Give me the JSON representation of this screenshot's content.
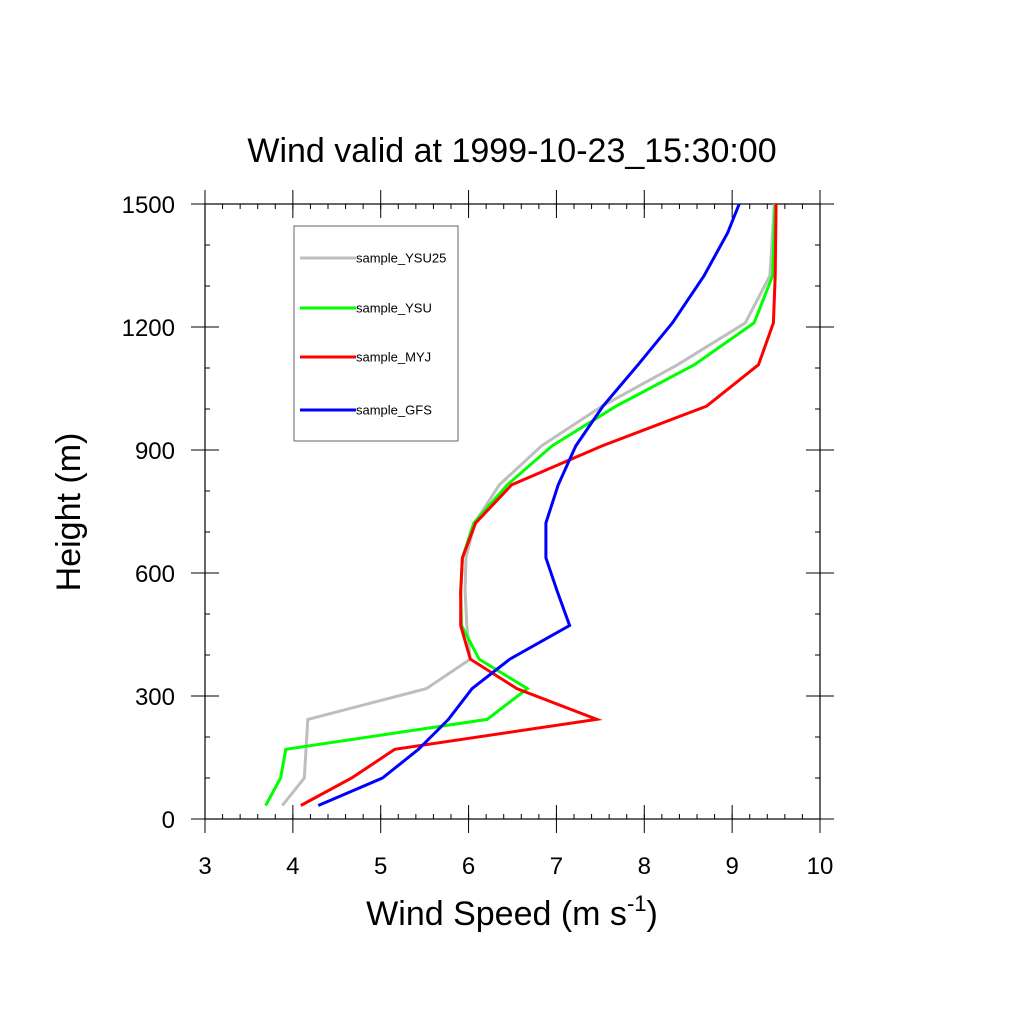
{
  "chart_data": {
    "type": "line",
    "title": "Wind valid at 1999-10-23_15:30:00",
    "xlabel": "Wind Speed (m s",
    "xlabel_superscript": "-1",
    "xlabel_suffix": ")",
    "ylabel": "Height (m)",
    "xlim": [
      3,
      10
    ],
    "ylim": [
      0,
      1500
    ],
    "x_ticks": [
      3,
      4,
      5,
      6,
      7,
      8,
      9,
      10
    ],
    "y_ticks": [
      0,
      300,
      600,
      900,
      1200,
      1500
    ],
    "grid": false,
    "legend_position": "top-left",
    "series": [
      {
        "name": "sample_YSU25",
        "color": "#bebebe",
        "points": [
          [
            3.88,
            33
          ],
          [
            4.13,
            100
          ],
          [
            4.17,
            243
          ],
          [
            5.52,
            318
          ],
          [
            6.02,
            390
          ],
          [
            5.98,
            472
          ],
          [
            5.96,
            555
          ],
          [
            5.97,
            637
          ],
          [
            6.07,
            722
          ],
          [
            6.35,
            815
          ],
          [
            6.83,
            910
          ],
          [
            7.52,
            1007
          ],
          [
            8.38,
            1108
          ],
          [
            9.15,
            1210
          ],
          [
            9.43,
            1325
          ],
          [
            9.48,
            1500
          ]
        ]
      },
      {
        "name": "sample_YSU",
        "color": "#00ff00",
        "points": [
          [
            3.69,
            33
          ],
          [
            3.86,
            100
          ],
          [
            3.92,
            170
          ],
          [
            6.21,
            243
          ],
          [
            6.67,
            318
          ],
          [
            6.12,
            390
          ],
          [
            5.92,
            472
          ],
          [
            5.91,
            555
          ],
          [
            5.93,
            637
          ],
          [
            6.06,
            722
          ],
          [
            6.44,
            815
          ],
          [
            6.95,
            910
          ],
          [
            7.68,
            1007
          ],
          [
            8.57,
            1108
          ],
          [
            9.25,
            1210
          ],
          [
            9.46,
            1325
          ],
          [
            9.49,
            1500
          ]
        ]
      },
      {
        "name": "sample_MYJ",
        "color": "#ff0000",
        "points": [
          [
            4.09,
            33
          ],
          [
            4.67,
            100
          ],
          [
            5.16,
            170
          ],
          [
            7.46,
            243
          ],
          [
            6.55,
            318
          ],
          [
            6.02,
            390
          ],
          [
            5.91,
            472
          ],
          [
            5.91,
            555
          ],
          [
            5.93,
            637
          ],
          [
            6.08,
            722
          ],
          [
            6.49,
            815
          ],
          [
            7.52,
            910
          ],
          [
            8.71,
            1007
          ],
          [
            9.3,
            1108
          ],
          [
            9.47,
            1210
          ],
          [
            9.49,
            1325
          ],
          [
            9.5,
            1500
          ]
        ]
      },
      {
        "name": "sample_GFS",
        "color": "#0000ff",
        "points": [
          [
            4.29,
            33
          ],
          [
            5.02,
            100
          ],
          [
            5.43,
            170
          ],
          [
            5.77,
            243
          ],
          [
            6.04,
            318
          ],
          [
            6.47,
            390
          ],
          [
            7.15,
            472
          ],
          [
            7.01,
            555
          ],
          [
            6.88,
            637
          ],
          [
            6.88,
            722
          ],
          [
            7.02,
            815
          ],
          [
            7.22,
            910
          ],
          [
            7.53,
            1007
          ],
          [
            7.93,
            1108
          ],
          [
            8.32,
            1210
          ],
          [
            8.68,
            1325
          ],
          [
            8.95,
            1430
          ],
          [
            9.08,
            1500
          ]
        ]
      }
    ]
  }
}
